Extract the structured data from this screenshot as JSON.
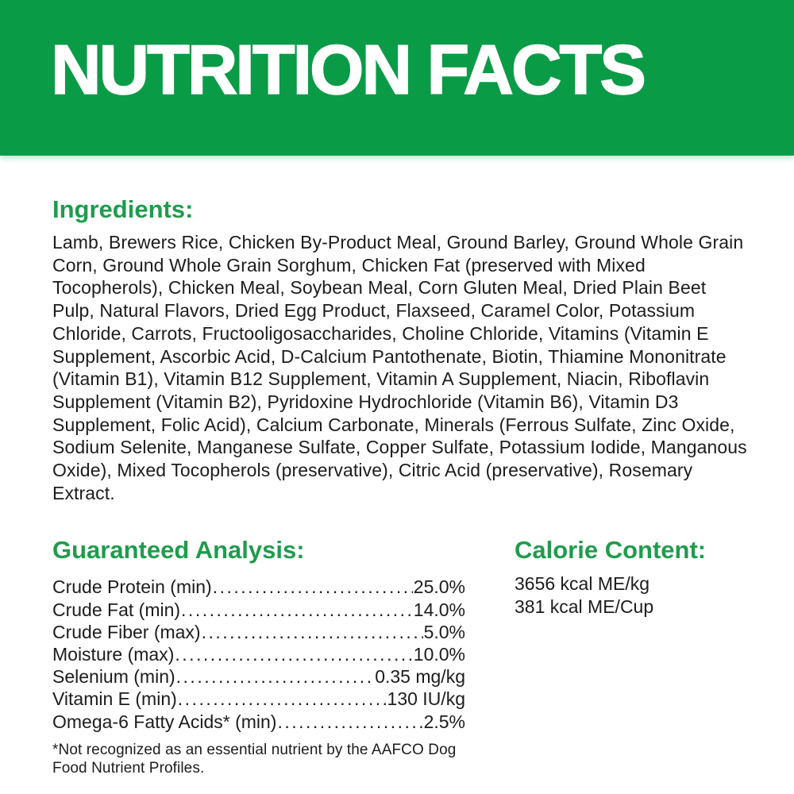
{
  "header": {
    "title": "NUTRITION FACTS"
  },
  "colors": {
    "banner_green": "#0a9b47",
    "heading_green": "#1f9c4d",
    "body_text": "#1c1c1c",
    "banner_text": "#ffffff"
  },
  "ingredients": {
    "heading": "Ingredients:",
    "text": "Lamb, Brewers Rice, Chicken By-Product Meal, Ground Barley, Ground Whole Grain Corn, Ground Whole Grain Sorghum, Chicken Fat (preserved with Mixed Tocopherols), Chicken Meal, Soybean Meal, Corn Gluten Meal, Dried Plain Beet Pulp, Natural Flavors, Dried Egg Product, Flaxseed, Caramel Color, Potassium Chloride, Carrots, Fructooligosaccharides, Choline Chloride, Vitamins (Vitamin E Supplement, Ascorbic Acid, D-Calcium Pantothenate, Biotin, Thiamine Mononitrate (Vitamin B1), Vitamin B12 Supplement, Vitamin A Supplement, Niacin, Riboflavin Supplement (Vitamin B2), Pyridoxine Hydrochloride (Vitamin B6), Vitamin D3 Supplement, Folic Acid), Calcium Carbonate, Minerals (Ferrous Sulfate, Zinc Oxide, Sodium Selenite, Manganese Sulfate, Copper Sulfate, Potassium Iodide, Manganous Oxide), Mixed Tocopherols (preservative), Citric Acid (preservative), Rosemary Extract."
  },
  "guaranteed_analysis": {
    "heading": "Guaranteed Analysis:",
    "rows": [
      {
        "label": "Crude Protein (min)",
        "value": "25.0%"
      },
      {
        "label": "Crude Fat (min)",
        "value": "14.0%"
      },
      {
        "label": "Crude Fiber (max)",
        "value": "5.0%"
      },
      {
        "label": "Moisture (max)",
        "value": "10.0%"
      },
      {
        "label": "Selenium (min)",
        "value": "0.35 mg/kg"
      },
      {
        "label": "Vitamin E (min)",
        "value": "130 IU/kg"
      },
      {
        "label": "Omega-6 Fatty Acids* (min)",
        "value": "2.5%"
      }
    ],
    "footnote": "*Not recognized as an essential nutrient by the AAFCO Dog Food Nutrient Profiles."
  },
  "calorie_content": {
    "heading": "Calorie Content:",
    "lines": [
      "3656 kcal ME/kg",
      "381 kcal ME/Cup"
    ]
  }
}
